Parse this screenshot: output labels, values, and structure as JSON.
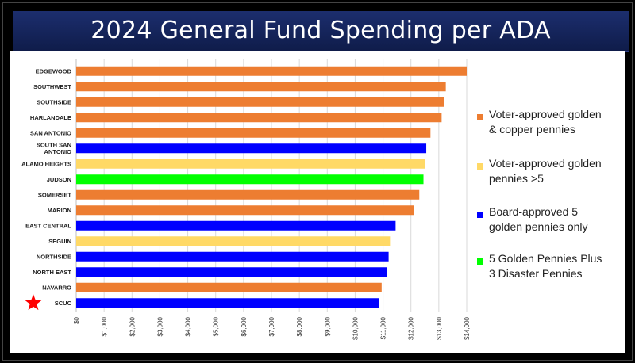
{
  "slide": {
    "title": "2024 General Fund Spending per ADA"
  },
  "legend": [
    {
      "label_line1": "Voter-approved golden",
      "label_line2": "& copper pennies",
      "color": "#ED7D31"
    },
    {
      "label_line1": "Voter-approved golden",
      "label_line2": "pennies >5",
      "color": "#FFD966"
    },
    {
      "label_line1": "Board-approved 5",
      "label_line2": "golden pennies only",
      "color": "#0000FF"
    },
    {
      "label_line1": "5 Golden Pennies Plus",
      "label_line2": "3 Disaster Pennies",
      "color": "#00FF00"
    }
  ],
  "highlight": {
    "category": "SCUC",
    "marker": "star-icon",
    "color": "#FF0000"
  },
  "chart_data": {
    "type": "bar",
    "orientation": "horizontal",
    "title": "",
    "xlabel": "",
    "ylabel": "",
    "xlim": [
      0,
      14000
    ],
    "x_ticks": [
      "$0",
      "$1,000",
      "$2,000",
      "$3,000",
      "$4,000",
      "$5,000",
      "$6,000",
      "$7,000",
      "$8,000",
      "$9,000",
      "$10,000",
      "$11,000",
      "$12,000",
      "$13,000",
      "$14,000"
    ],
    "grid": true,
    "legend_position": "right",
    "categories": [
      "EDGEWOOD",
      "SOUTHWEST",
      "SOUTHSIDE",
      "HARLANDALE",
      "SAN ANTONIO",
      "SOUTH SAN ANTONIO",
      "ALAMO HEIGHTS",
      "JUDSON",
      "SOMERSET",
      "MARION",
      "EAST CENTRAL",
      "SEGUIN",
      "NORTHSIDE",
      "NORTH EAST",
      "NAVARRO",
      "SCUC"
    ],
    "category_lines": [
      [
        "EDGEWOOD"
      ],
      [
        "SOUTHWEST"
      ],
      [
        "SOUTHSIDE"
      ],
      [
        "HARLANDALE"
      ],
      [
        "SAN ANTONIO"
      ],
      [
        "SOUTH SAN",
        "ANTONIO"
      ],
      [
        "ALAMO HEIGHTS"
      ],
      [
        "JUDSON"
      ],
      [
        "SOMERSET"
      ],
      [
        "MARION"
      ],
      [
        "EAST CENTRAL"
      ],
      [
        "SEGUIN"
      ],
      [
        "NORTHSIDE"
      ],
      [
        "NORTH EAST"
      ],
      [
        "NAVARRO"
      ],
      [
        "SCUC"
      ]
    ],
    "values": [
      14000,
      13250,
      13200,
      13100,
      12700,
      12550,
      12500,
      12450,
      12300,
      12100,
      11450,
      11250,
      11200,
      11150,
      10950,
      10850
    ],
    "groups": [
      "Voter-approved golden & copper pennies",
      "Voter-approved golden & copper pennies",
      "Voter-approved golden & copper pennies",
      "Voter-approved golden & copper pennies",
      "Voter-approved golden & copper pennies",
      "Board-approved 5 golden pennies only",
      "Voter-approved golden pennies >5",
      "5 Golden Pennies Plus 3 Disaster Pennies",
      "Voter-approved golden & copper pennies",
      "Voter-approved golden & copper pennies",
      "Board-approved 5 golden pennies only",
      "Voter-approved golden pennies >5",
      "Board-approved 5 golden pennies only",
      "Board-approved 5 golden pennies only",
      "Voter-approved golden & copper pennies",
      "Board-approved 5 golden pennies only"
    ],
    "colors": [
      "#ED7D31",
      "#ED7D31",
      "#ED7D31",
      "#ED7D31",
      "#ED7D31",
      "#0000FF",
      "#FFD966",
      "#00FF00",
      "#ED7D31",
      "#ED7D31",
      "#0000FF",
      "#FFD966",
      "#0000FF",
      "#0000FF",
      "#ED7D31",
      "#0000FF"
    ]
  }
}
